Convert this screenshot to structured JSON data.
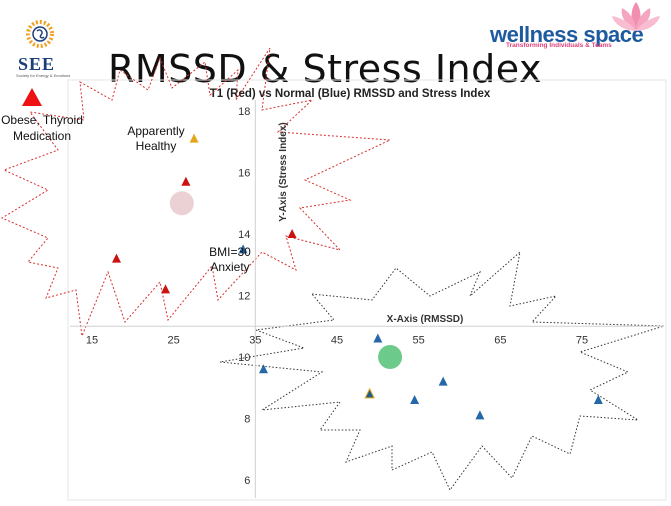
{
  "slide": {
    "title": "RMSSD & Stress Index",
    "see_logo_text": "SEE",
    "see_logo_subtext": "Society for Energy & Emotions",
    "wellness_logo_text": "wellness space",
    "wellness_tagline": "Transforming Individuals & Teams"
  },
  "colors": {
    "red": "#cc1111",
    "blue": "#2468a8",
    "gold": "#e1a81c",
    "pink_circle": "#e8c8cc",
    "green_circle": "#5cc47e",
    "red_star_border": "#d63030",
    "black_star_border": "#333333"
  },
  "chart_data": {
    "type": "scatter",
    "title": "T1 (Red) vs Normal (Blue) RMSSD and Stress Index",
    "xlabel": "X-Axis (RMSSD)",
    "ylabel": "Y-Axis (Stress Index)",
    "xlim": [
      10,
      82
    ],
    "ylim": [
      5.5,
      19
    ],
    "x_crosses_y_at": 11,
    "y_crosses_x_at": 35,
    "x_ticks": [
      15,
      25,
      35,
      45,
      55,
      65,
      75
    ],
    "y_ticks": [
      6,
      8,
      10,
      12,
      14,
      16,
      18
    ],
    "grid": false,
    "series": [
      {
        "name": "T1 (Red)",
        "marker": "triangle",
        "points": [
          [
            18,
            13.2
          ],
          [
            24,
            12.2
          ],
          [
            26.5,
            15.7
          ],
          [
            39.5,
            14
          ]
        ]
      },
      {
        "name": "Normal (Blue)",
        "marker": "triangle",
        "points": [
          [
            33.5,
            13.5
          ],
          [
            36,
            9.6
          ],
          [
            50,
            10.6
          ],
          [
            58,
            9.2
          ],
          [
            54.5,
            8.6
          ],
          [
            62.5,
            8.1
          ],
          [
            77,
            8.6
          ]
        ]
      },
      {
        "name": "Apparently Healthy",
        "marker": "triangle",
        "points": [
          [
            27.5,
            17.1
          ],
          [
            49,
            8.8
          ]
        ]
      }
    ],
    "centroids": [
      {
        "x": 26,
        "y": 15,
        "color": "pink"
      },
      {
        "x": 51.5,
        "y": 10,
        "color": "green"
      }
    ],
    "annotations": {
      "red_legend": "Obese, Thyroid\nMedication",
      "apparently_healthy": "Apparently\nHealthy",
      "bmi": "BMI=30\nAnxiety"
    }
  }
}
